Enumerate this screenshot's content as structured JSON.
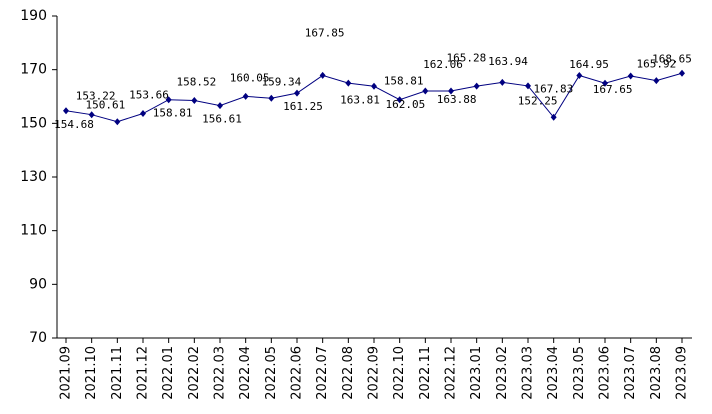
{
  "chart_data": {
    "type": "line",
    "categories": [
      "2021.09",
      "2021.10",
      "2021.11",
      "2021.12",
      "2022.01",
      "2022.02",
      "2022.03",
      "2022.04",
      "2022.05",
      "2022.06",
      "2022.07",
      "2022.08",
      "2022.09",
      "2022.10",
      "2022.11",
      "2022.12",
      "2023.01",
      "2023.02",
      "2023.03",
      "2023.04",
      "2023.05",
      "2023.06",
      "2023.07",
      "2023.08",
      "2023.09"
    ],
    "series": [
      {
        "color": "#000080",
        "values": [
          154.68,
          153.22,
          150.61,
          153.66,
          158.81,
          158.52,
          156.61,
          160.05,
          159.34,
          161.25,
          167.85,
          165.0,
          163.81,
          158.81,
          162.05,
          162.06,
          163.88,
          165.28,
          163.94,
          152.25,
          167.83,
          164.95,
          167.65,
          165.92,
          168.65
        ],
        "value_labels": [
          "154.68",
          "153.22",
          "150.61",
          "153.66",
          "158.81",
          "158.52",
          "156.61",
          "160.05",
          "159.34",
          "161.25",
          "167.85",
          null,
          "163.81",
          "158.81",
          "162.05",
          "162.06",
          "163.88",
          "165.28",
          "163.94",
          "152.25",
          "167.83",
          "164.95",
          "167.65",
          "165.92",
          "168.65"
        ]
      }
    ],
    "ylim": [
      70,
      190
    ],
    "yticks": [
      70,
      90,
      110,
      130,
      150,
      170,
      190
    ],
    "grid": false
  }
}
